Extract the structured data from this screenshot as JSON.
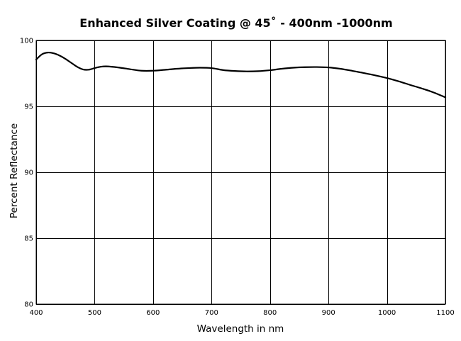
{
  "chart_data": {
    "type": "line",
    "title": "Enhanced Silver Coating @ 45˚ - 400nm -1000nm",
    "xlabel": "Wavelength in nm",
    "ylabel": "Percent Reflectance",
    "xlim": [
      400,
      1100
    ],
    "ylim": [
      80,
      100
    ],
    "x_ticks": [
      400,
      500,
      600,
      700,
      800,
      900,
      1000,
      1100
    ],
    "y_ticks": [
      80,
      85,
      90,
      95,
      100
    ],
    "grid": true,
    "legend": "none",
    "series": [
      {
        "color": "#000000",
        "x": [
          400,
          410,
          420,
          430,
          440,
          450,
          460,
          470,
          480,
          490,
          500,
          510,
          520,
          540,
          560,
          580,
          600,
          620,
          640,
          660,
          680,
          700,
          720,
          740,
          760,
          780,
          800,
          820,
          840,
          860,
          880,
          900,
          920,
          940,
          960,
          980,
          1000,
          1020,
          1040,
          1060,
          1080,
          1100
        ],
        "y": [
          98.55,
          98.95,
          99.08,
          99.02,
          98.85,
          98.6,
          98.3,
          98.0,
          97.8,
          97.78,
          97.9,
          98.0,
          98.03,
          97.95,
          97.82,
          97.7,
          97.7,
          97.77,
          97.85,
          97.9,
          97.93,
          97.9,
          97.75,
          97.68,
          97.65,
          97.67,
          97.74,
          97.85,
          97.93,
          97.97,
          97.98,
          97.95,
          97.85,
          97.7,
          97.53,
          97.35,
          97.15,
          96.9,
          96.62,
          96.35,
          96.05,
          95.68
        ]
      }
    ]
  }
}
